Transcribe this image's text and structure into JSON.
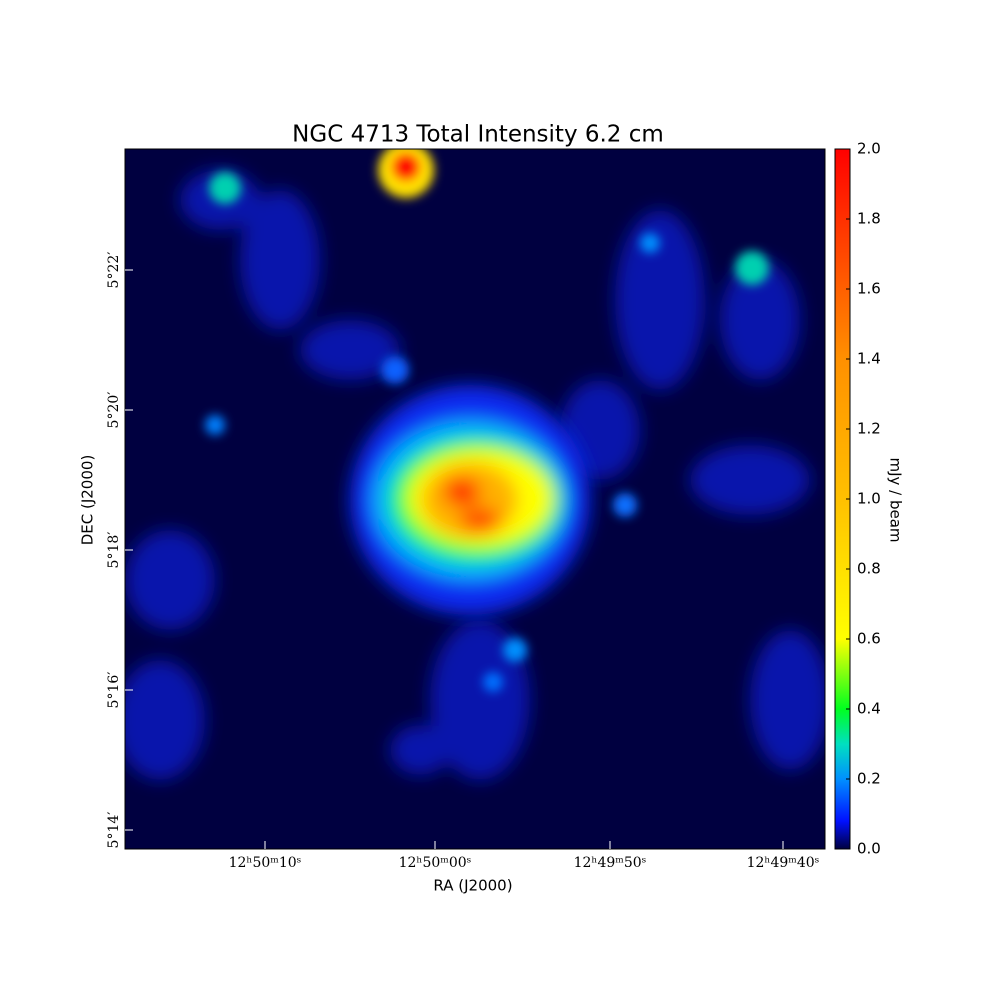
{
  "chart_data": {
    "type": "image",
    "title": "NGC 4713 Total Intensity 6.2 cm",
    "x_label": "RA (J2000)",
    "y_label": "DEC (J2000)",
    "xtick_labels": [
      "12ʰ50ᵐ10ˢ",
      "12ʰ50ᵐ00ˢ",
      "12ʰ49ᵐ50ˢ",
      "12ʰ49ᵐ40ˢ"
    ],
    "ytick_labels": [
      "5°22′",
      "5°20′",
      "5°18′",
      "5°16′",
      "5°14′"
    ],
    "colorbar": {
      "label": "mJy / beam",
      "lim": [
        0,
        2
      ],
      "ticks": [
        {
          "value": 0,
          "label": "0.0"
        },
        0.2,
        0.4,
        0.6,
        0.8,
        {
          "value": 1,
          "label": "1.0"
        },
        1.2,
        1.4,
        1.6,
        1.8,
        {
          "value": 2,
          "label": "2.0"
        }
      ]
    }
  }
}
